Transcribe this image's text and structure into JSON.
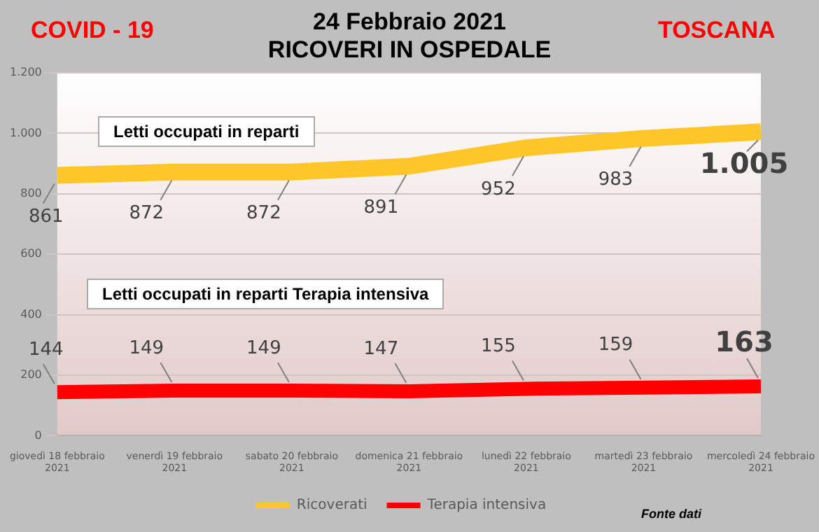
{
  "chart_data": {
    "type": "line",
    "title": "24 Febbraio 2021",
    "subtitle": "RICOVERI IN OSPEDALE",
    "annotations": [
      "COVID - 19",
      "TOSCANA",
      "Letti occupati in reparti",
      "Letti occupati in reparti Terapia intensiva",
      "Fonte dati"
    ],
    "categories": [
      "giovedì 18 febbraio 2021",
      "venerdì 19 febbraio 2021",
      "sabato 20 febbraio 2021",
      "domenica 21 febbraio 2021",
      "lunedì 22 febbraio 2021",
      "martedì 23 febbraio 2021",
      "mercoledì 24 febbraio 2021"
    ],
    "series": [
      {
        "name": "Ricoverati",
        "color": "#ffc629",
        "values": [
          861,
          872,
          872,
          891,
          952,
          983,
          1005
        ],
        "value_labels": [
          "861",
          "872",
          "872",
          "891",
          "952",
          "983",
          "1.005"
        ]
      },
      {
        "name": "Terapia intensiva",
        "color": "#ff0000",
        "values": [
          144,
          149,
          149,
          147,
          155,
          159,
          163
        ],
        "value_labels": [
          "144",
          "149",
          "149",
          "147",
          "155",
          "159",
          "163"
        ]
      }
    ],
    "ylim": [
      0,
      1200
    ],
    "yticks": [
      0,
      200,
      400,
      600,
      800,
      {
        "value": 1000,
        "label": "1.000"
      },
      {
        "value": 1200,
        "label": "1.200"
      }
    ],
    "grid": "y",
    "legend": "bottom",
    "marker": "none",
    "line_style": "solid"
  }
}
